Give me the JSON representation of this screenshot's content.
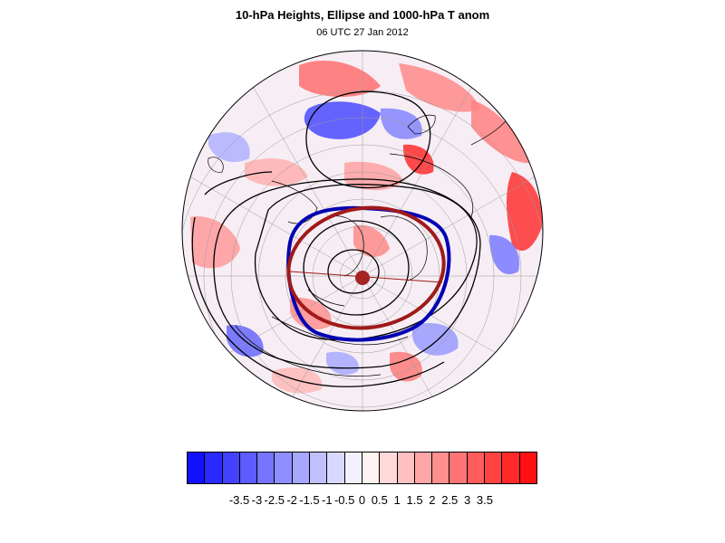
{
  "title": "10-hPa Heights, Ellipse and 1000-hPa T anom",
  "subtitle": "06 UTC 27 Jan 2012",
  "map": {
    "projection": "polar-stereographic-north",
    "shading_variable": "1000-hPa T anom",
    "contour_variable": "10-hPa Heights",
    "ellipse_colors": [
      "#0000b4",
      "#a01a1a"
    ]
  },
  "colorbar": {
    "colors": [
      "#1111ff",
      "#2a2aff",
      "#4343ff",
      "#5c5cff",
      "#7575ff",
      "#8e8eff",
      "#a7a7ff",
      "#c0c0ff",
      "#d9d9ff",
      "#f2f2ff",
      "#fff2f2",
      "#ffd9d9",
      "#ffc0c0",
      "#ffa7a7",
      "#ff8e8e",
      "#ff7575",
      "#ff5c5c",
      "#ff4343",
      "#ff2a2a",
      "#ff1111"
    ],
    "labels": [
      "-3.5",
      "-3",
      "-2.5",
      "-2",
      "-1.5",
      "-1",
      "-0.5",
      "0",
      "0.5",
      "1",
      "1.5",
      "2",
      "2.5",
      "3",
      "3.5"
    ]
  }
}
